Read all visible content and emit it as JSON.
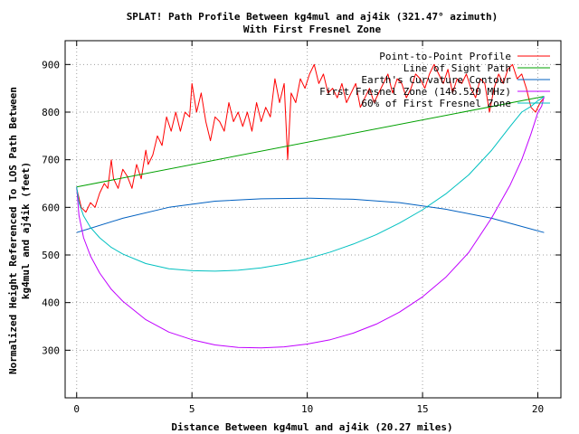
{
  "chart_data": {
    "type": "line",
    "title_line1": "SPLAT! Path Profile Between kg4mul and aj4ik (321.47° azimuth)",
    "title_line2": "With First Fresnel Zone",
    "xlabel": "Distance Between kg4mul and aj4ik (20.27 miles)",
    "ylabel_line1": "Normalized Height Referenced To LOS Path Between",
    "ylabel_line2": "kg4mul and aj4ik (feet)",
    "xlim": [
      -0.5,
      21
    ],
    "ylim": [
      200,
      950
    ],
    "xticks": [
      0,
      5,
      10,
      15,
      20
    ],
    "yticks": [
      300,
      400,
      500,
      600,
      700,
      800,
      900
    ],
    "grid": true,
    "legend_position": "top-right",
    "series": [
      {
        "name": "Point-to-Point Profile",
        "color": "#ff0000",
        "x": [
          0,
          0.2,
          0.4,
          0.6,
          0.8,
          1.0,
          1.2,
          1.35,
          1.5,
          1.6,
          1.8,
          2.0,
          2.2,
          2.4,
          2.6,
          2.8,
          3.0,
          3.1,
          3.3,
          3.5,
          3.7,
          3.9,
          4.1,
          4.3,
          4.5,
          4.7,
          4.9,
          5.0,
          5.2,
          5.4,
          5.6,
          5.8,
          6.0,
          6.2,
          6.4,
          6.6,
          6.8,
          7.0,
          7.2,
          7.4,
          7.6,
          7.8,
          8.0,
          8.2,
          8.4,
          8.6,
          8.8,
          9.0,
          9.15,
          9.3,
          9.5,
          9.7,
          9.9,
          10.1,
          10.3,
          10.5,
          10.7,
          10.9,
          11.1,
          11.3,
          11.5,
          11.7,
          11.9,
          12.1,
          12.3,
          12.5,
          12.7,
          12.9,
          13.1,
          13.3,
          13.5,
          13.7,
          13.9,
          14.1,
          14.3,
          14.5,
          14.7,
          14.9,
          15.1,
          15.3,
          15.5,
          15.7,
          15.9,
          16.1,
          16.3,
          16.5,
          16.7,
          16.9,
          17.1,
          17.3,
          17.5,
          17.7,
          17.9,
          18.1,
          18.3,
          18.5,
          18.7,
          18.9,
          19.1,
          19.3,
          19.5,
          19.7,
          19.9,
          20.1,
          20.27
        ],
        "y": [
          640,
          600,
          590,
          610,
          600,
          630,
          650,
          640,
          700,
          660,
          640,
          680,
          665,
          640,
          690,
          660,
          720,
          690,
          710,
          750,
          730,
          790,
          760,
          800,
          760,
          800,
          790,
          860,
          800,
          840,
          780,
          740,
          790,
          780,
          760,
          820,
          780,
          800,
          770,
          800,
          760,
          820,
          780,
          810,
          790,
          870,
          820,
          860,
          700,
          840,
          820,
          870,
          850,
          880,
          900,
          860,
          880,
          840,
          850,
          830,
          860,
          820,
          840,
          860,
          810,
          830,
          850,
          820,
          840,
          860,
          880,
          840,
          870,
          860,
          830,
          850,
          880,
          870,
          850,
          880,
          900,
          880,
          860,
          890,
          840,
          870,
          860,
          880,
          850,
          830,
          870,
          860,
          800,
          850,
          880,
          860,
          890,
          900,
          870,
          880,
          850,
          810,
          800,
          820,
          830
        ]
      },
      {
        "name": "Line of Sight Path",
        "color": "#00a000",
        "x": [
          0,
          20.27
        ],
        "y": [
          643,
          833
        ]
      },
      {
        "name": "Earth's Curvature Contour",
        "color": "#0060c0",
        "x": [
          0,
          2,
          4,
          6,
          8,
          10,
          10.14,
          12,
          14,
          16,
          18,
          20.27
        ],
        "y": [
          547,
          577,
          600,
          613,
          618,
          619,
          619,
          617,
          610,
          596,
          577,
          547
        ]
      },
      {
        "name": "First Fresnel Zone (146.520 MHz)",
        "color": "#c000ff",
        "x": [
          0,
          0.1,
          0.3,
          0.6,
          1.0,
          1.5,
          2,
          3,
          4,
          5,
          6,
          7,
          8,
          9,
          10,
          11,
          12,
          13,
          14,
          15,
          16,
          17,
          18,
          18.8,
          19.3,
          19.7,
          20.0,
          20.17,
          20.27
        ],
        "y": [
          643,
          583,
          536,
          498,
          462,
          428,
          403,
          364,
          338,
          322,
          311,
          306,
          305,
          307,
          313,
          322,
          336,
          355,
          380,
          412,
          453,
          505,
          578,
          647,
          700,
          754,
          799,
          813,
          833
        ]
      },
      {
        "name": "60% of First Fresnel Zone",
        "color": "#00c0c0",
        "x": [
          0,
          0.1,
          0.3,
          0.6,
          1.0,
          1.5,
          2,
          3,
          4,
          5,
          6,
          7,
          8,
          9,
          10,
          11,
          12,
          13,
          14,
          15,
          16,
          17,
          18,
          18.8,
          19.3,
          19.7,
          20.0,
          20.17,
          20.27
        ],
        "y": [
          643,
          610,
          582,
          558,
          536,
          516,
          502,
          482,
          471,
          467,
          466,
          468,
          473,
          481,
          492,
          506,
          523,
          543,
          567,
          595,
          628,
          668,
          720,
          770,
          800,
          812,
          824,
          829,
          833
        ]
      }
    ]
  }
}
